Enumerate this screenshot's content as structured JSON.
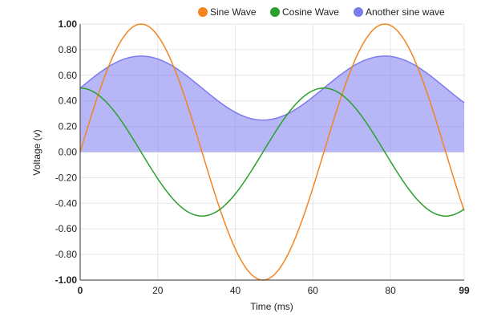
{
  "chart_data": {
    "type": "line",
    "xlabel": "Time (ms)",
    "ylabel": "Voltage (v)",
    "xlim": [
      0,
      99
    ],
    "ylim": [
      -1,
      1
    ],
    "x_ticks": [
      0,
      20,
      40,
      60,
      80,
      99
    ],
    "x_tick_labels": [
      "0",
      "20",
      "40",
      "60",
      "80",
      "99"
    ],
    "y_ticks": [
      -1,
      -0.8,
      -0.6,
      -0.4,
      -0.2,
      0,
      0.2,
      0.4,
      0.6,
      0.8,
      1
    ],
    "y_tick_labels": [
      "-1.00",
      "-0.80",
      "-0.60",
      "-0.40",
      "-0.20",
      "0.00",
      "0.20",
      "0.40",
      "0.60",
      "0.80",
      "1.00"
    ],
    "grid": true,
    "legend_position": "top-right",
    "series": [
      {
        "name": "Sine Wave",
        "color": "#f5841f",
        "kind": "line",
        "function": "sin(x/10)",
        "x": [
          0,
          5,
          10,
          15.7,
          20,
          25,
          30,
          35,
          40,
          47.1,
          55,
          60,
          65,
          70,
          78.5,
          85,
          90,
          95,
          99
        ],
        "y": [
          0,
          0.48,
          0.84,
          1.0,
          0.91,
          0.6,
          0.14,
          -0.35,
          -0.76,
          -1.0,
          -0.71,
          -0.28,
          0.22,
          0.66,
          1.0,
          0.8,
          0.41,
          -0.08,
          -0.46
        ]
      },
      {
        "name": "Cosine Wave",
        "color": "#2ca02c",
        "kind": "line",
        "function": "0.5*cos(x/10)",
        "x": [
          0,
          5,
          10,
          15.7,
          20,
          25,
          31.4,
          35,
          40,
          47.1,
          55,
          62.8,
          70,
          78.5,
          85,
          94.2,
          99
        ],
        "y": [
          0.5,
          0.44,
          0.27,
          0,
          -0.21,
          -0.4,
          -0.5,
          -0.47,
          -0.33,
          0,
          0.35,
          0.5,
          0.38,
          0,
          -0.3,
          -0.5,
          -0.45
        ]
      },
      {
        "name": "Another sine wave",
        "color": "#7b7bf0",
        "kind": "area",
        "function": "0.5 + 0.25*sin(x/10)",
        "x": [
          0,
          5,
          10,
          15.7,
          20,
          25,
          30,
          35,
          40,
          47.1,
          55,
          60,
          65,
          70,
          78.5,
          85,
          90,
          95,
          99
        ],
        "y": [
          0.5,
          0.62,
          0.71,
          0.75,
          0.73,
          0.65,
          0.54,
          0.41,
          0.31,
          0.25,
          0.32,
          0.43,
          0.55,
          0.66,
          0.75,
          0.7,
          0.6,
          0.48,
          0.38
        ]
      }
    ]
  }
}
